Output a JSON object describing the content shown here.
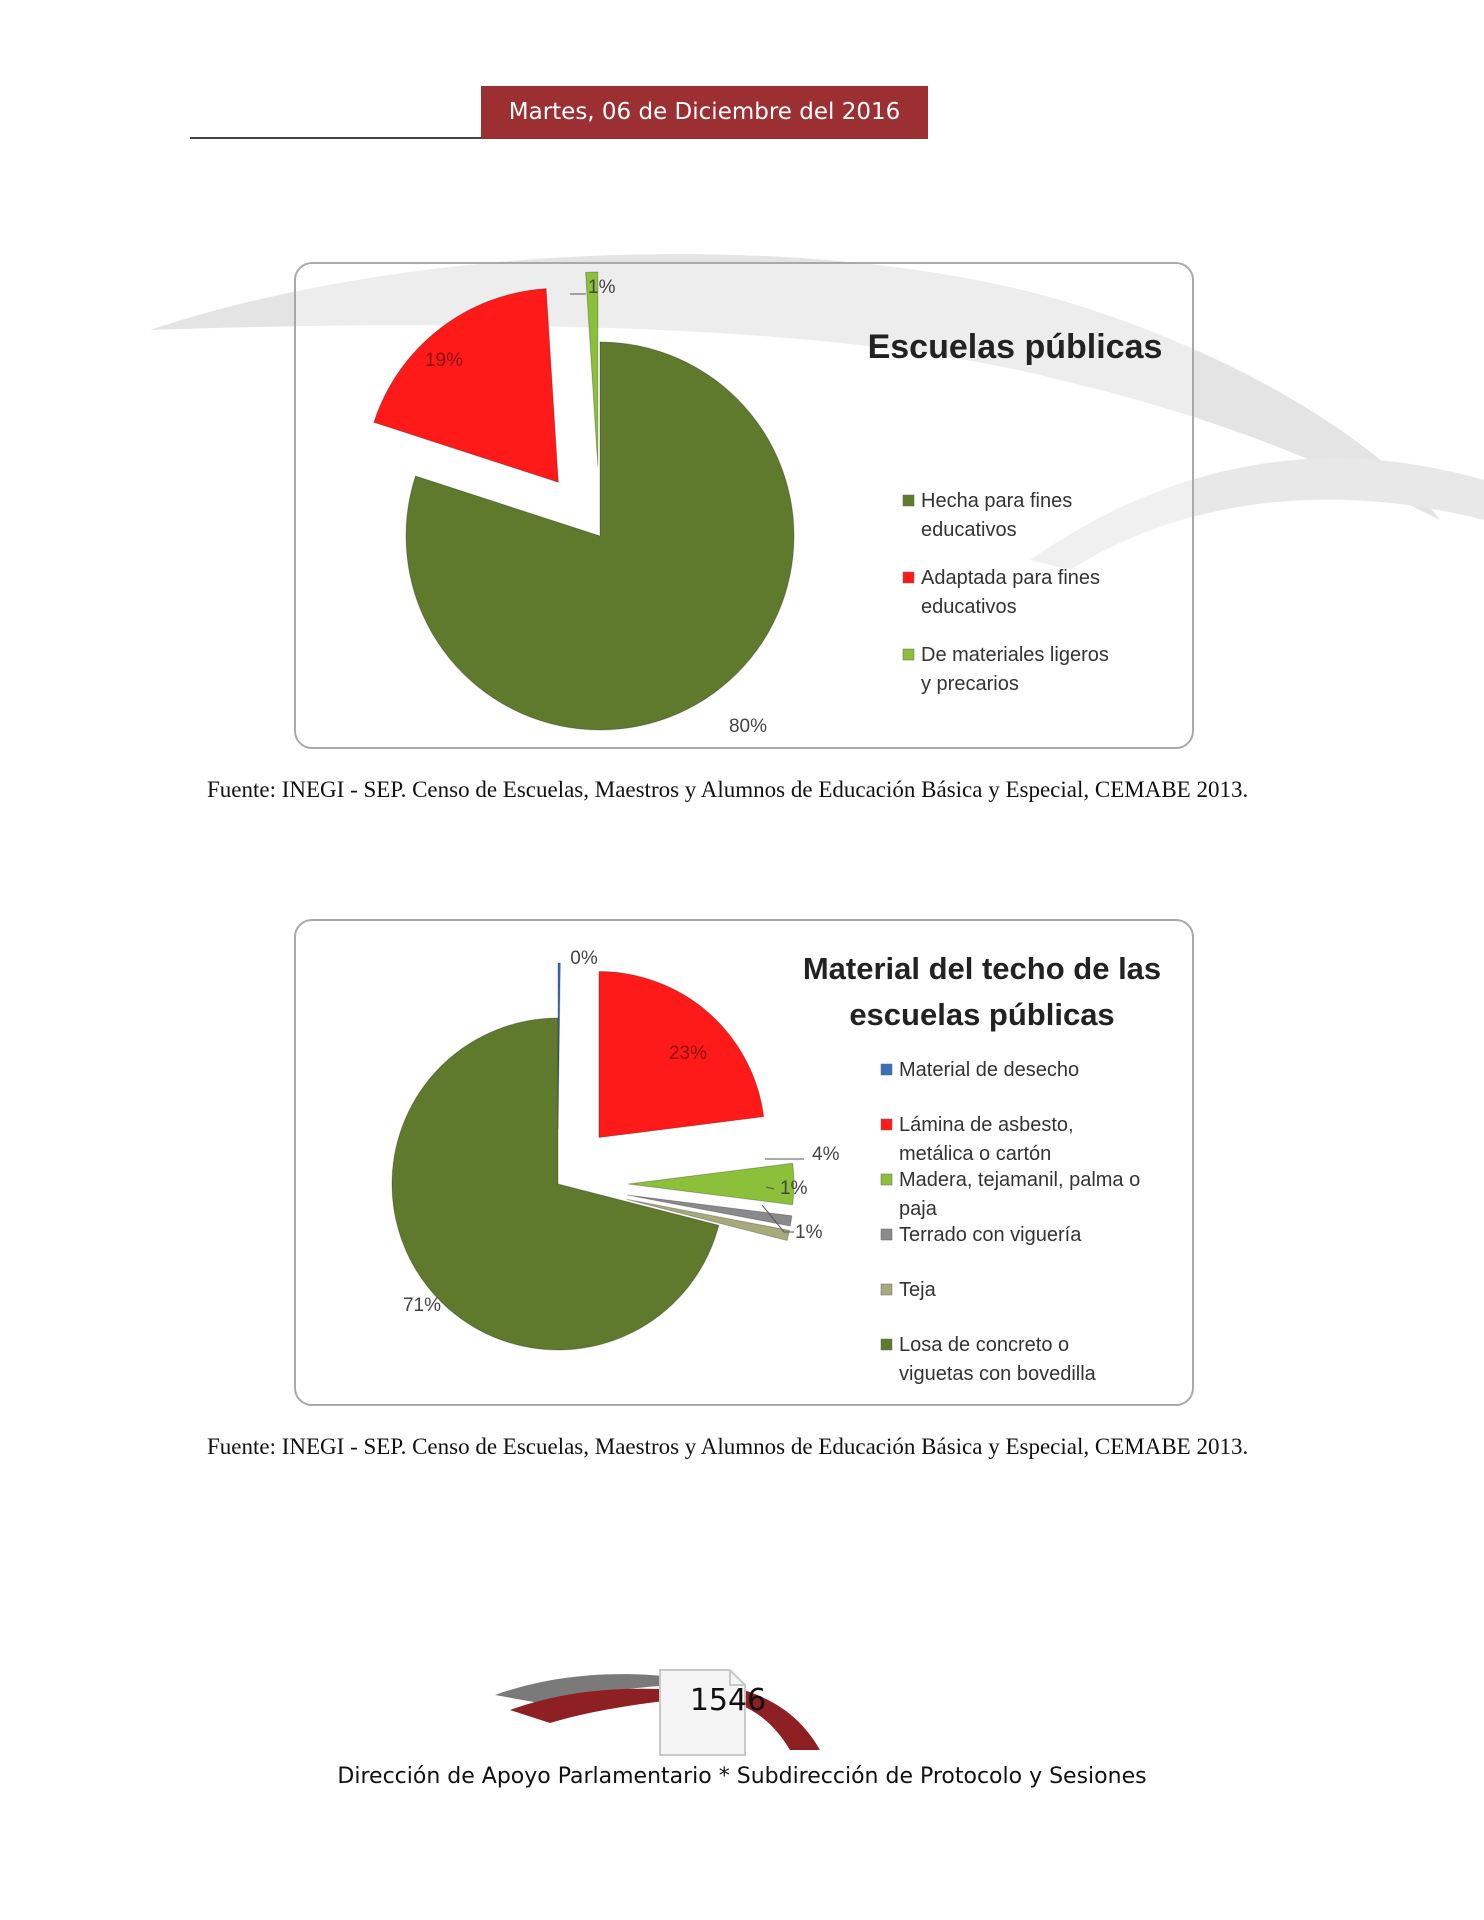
{
  "header": {
    "date": "Martes, 06 de Diciembre  del 2016"
  },
  "chart_data": [
    {
      "type": "pie",
      "title": "Escuelas públicas",
      "categories": [
        "Hecha para fines educativos",
        "Adaptada para fines educativos",
        "De materiales ligeros y precarios"
      ],
      "values": [
        80,
        19,
        1
      ],
      "data_labels": [
        "80%",
        "19%",
        "1%"
      ],
      "colors": [
        "#5f7a2d",
        "#ff1a1a",
        "#8cbf3a"
      ],
      "legend_position": "right"
    },
    {
      "type": "pie",
      "title": "Material del techo de las escuelas públicas",
      "categories": [
        "Material de desecho",
        "Lámina de asbesto, metálica o cartón",
        "Madera, tejamanil, palma o paja",
        "Terrado con viguería",
        "Teja",
        "Losa de concreto o viguetas con bovedilla"
      ],
      "values": [
        0,
        23,
        4,
        1,
        1,
        71
      ],
      "data_labels": [
        "0%",
        "23%",
        "4%",
        "1%",
        "1%",
        "71%"
      ],
      "colors": [
        "#3b6fb6",
        "#ff1a1a",
        "#8cbf3a",
        "#8a8a8a",
        "#a7ab7c",
        "#5f7a2d"
      ],
      "legend_position": "right"
    }
  ],
  "sources": [
    "Fuente: INEGI - SEP. Censo de Escuelas, Maestros y Alumnos de Educación Básica y Especial, CEMABE 2013.",
    "Fuente: INEGI - SEP. Censo de Escuelas, Maestros y Alumnos de Educación Básica y Especial, CEMABE 2013."
  ],
  "footer": {
    "page_number": "1546",
    "text": "Dirección de Apoyo Parlamentario * Subdirección de Protocolo y Sesiones"
  }
}
